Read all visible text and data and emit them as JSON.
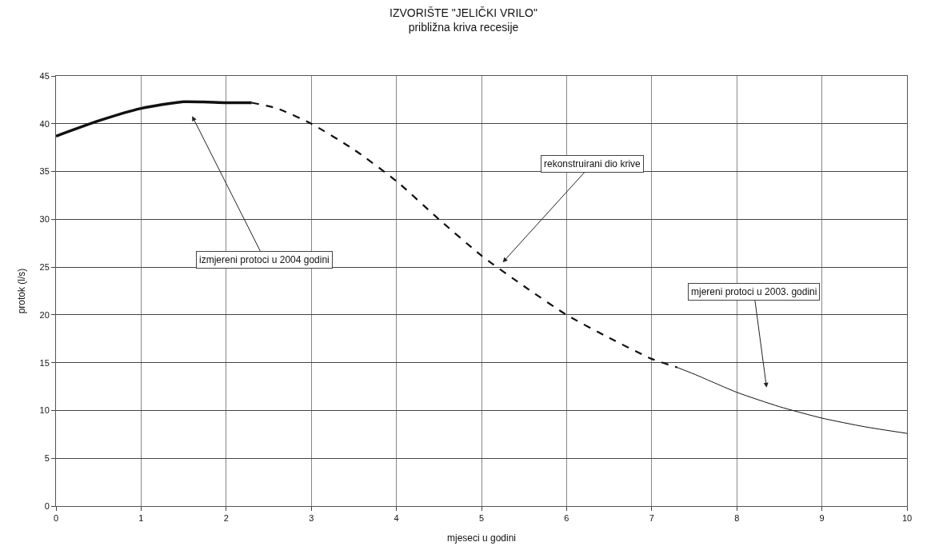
{
  "chart_data": {
    "type": "line",
    "title": "IZVORIŠTE \"JELIČKI VRILO\"",
    "subtitle": "približna kriva recesije",
    "xlabel": "mjeseci u godini",
    "ylabel": "protok (l/s)",
    "xlim": [
      0,
      10
    ],
    "xticks": [
      0,
      1,
      2,
      3,
      4,
      5,
      6,
      7,
      8,
      9,
      10
    ],
    "ylim": [
      0,
      45
    ],
    "yticks": [
      0,
      5,
      10,
      15,
      20,
      25,
      30,
      35,
      40,
      45
    ],
    "grid": true,
    "marker": "none",
    "series": [
      {
        "color": "#111111",
        "line_style": "solid",
        "x": [
          0,
          0.5,
          1,
          1.5,
          2,
          2.3
        ],
        "values": [
          38.7,
          40.3,
          41.6,
          42.3,
          42.2,
          42.2
        ]
      },
      {
        "color": "#111111",
        "line_style": "dashed",
        "x": [
          2.3,
          2.6,
          3,
          3.5,
          4,
          4.5,
          5,
          5.5,
          6,
          6.5,
          7,
          7.3
        ],
        "values": [
          42.2,
          41.6,
          40,
          37.3,
          34,
          30,
          26.2,
          23.0,
          20,
          17.6,
          15.4,
          14.5
        ]
      },
      {
        "color": "#111111",
        "line_style": "solid",
        "x": [
          7.3,
          7.5,
          8,
          8.5,
          9,
          9.5,
          10
        ],
        "values": [
          14.5,
          13.8,
          11.9,
          10.4,
          9.2,
          8.3,
          7.6
        ]
      }
    ],
    "annotations": [
      "izmjereni protoci u 2004 godini",
      "rekonstruirani dio krive",
      "mjereni protoci u 2003. godini"
    ]
  }
}
